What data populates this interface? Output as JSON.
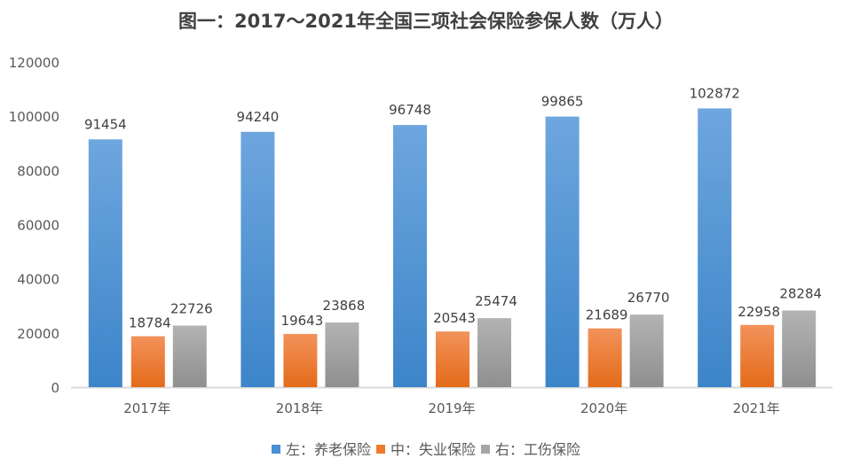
{
  "chart_data": {
    "type": "bar",
    "title": "图一：2017～2021年全国三项社会保险参保人数（万人）",
    "categories": [
      "2017年",
      "2018年",
      "2019年",
      "2020年",
      "2021年"
    ],
    "series": [
      {
        "name": "左：养老保险",
        "values": [
          91454,
          94240,
          96748,
          99865,
          102872
        ],
        "color": "#4a8fd4"
      },
      {
        "name": "中：失业保险",
        "values": [
          18784,
          19643,
          20543,
          21689,
          22958
        ],
        "color": "#ef7a2c"
      },
      {
        "name": "右：工伤保险",
        "values": [
          22726,
          23868,
          25474,
          26770,
          28284
        ],
        "color": "#a5a5a5"
      }
    ],
    "ylim": [
      0,
      120000
    ],
    "yticks": [
      0,
      20000,
      40000,
      60000,
      80000,
      100000,
      120000
    ],
    "grid": false,
    "legend": "bottom"
  }
}
